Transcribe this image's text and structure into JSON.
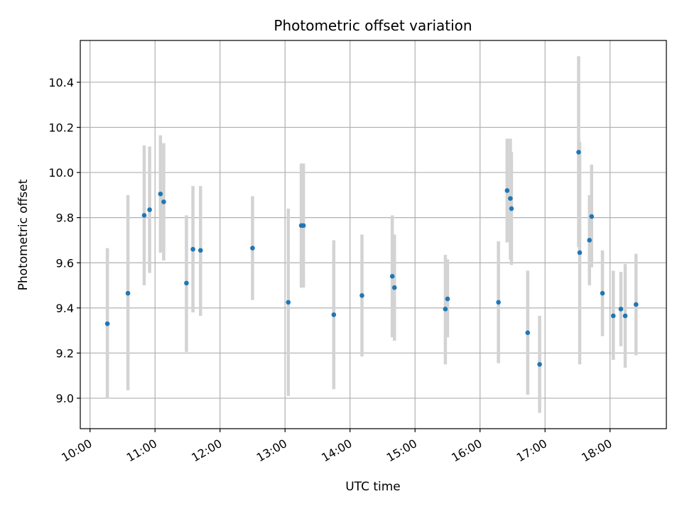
{
  "chart_data": {
    "type": "scatter",
    "title": "Photometric offset variation",
    "xlabel": "UTC time",
    "ylabel": "Photometric offset",
    "x_axis_type": "time",
    "xlim": [
      "09:51",
      "18:52"
    ],
    "ylim": [
      8.865,
      10.585
    ],
    "x_ticks": [
      "10:00",
      "11:00",
      "12:00",
      "13:00",
      "14:00",
      "15:00",
      "16:00",
      "17:00",
      "18:00"
    ],
    "y_ticks": [
      "9.0",
      "9.2",
      "9.4",
      "9.6",
      "9.8",
      "10.0",
      "10.2",
      "10.4"
    ],
    "grid": true,
    "colors": {
      "point": "#1f77b4",
      "errorbar": "#d3d3d3",
      "grid": "#b0b0b0",
      "axis": "#000000"
    },
    "points": [
      {
        "t": "10:16",
        "y": 9.33,
        "lo": 9.0,
        "hi": 9.665
      },
      {
        "t": "10:35",
        "y": 9.465,
        "lo": 9.035,
        "hi": 9.9
      },
      {
        "t": "10:50",
        "y": 9.81,
        "lo": 9.5,
        "hi": 10.12
      },
      {
        "t": "10:55",
        "y": 9.835,
        "lo": 9.555,
        "hi": 10.115
      },
      {
        "t": "11:05",
        "y": 9.905,
        "lo": 9.645,
        "hi": 10.165
      },
      {
        "t": "11:08",
        "y": 9.87,
        "lo": 9.61,
        "hi": 10.13
      },
      {
        "t": "11:29",
        "y": 9.51,
        "lo": 9.205,
        "hi": 9.81
      },
      {
        "t": "11:35",
        "y": 9.66,
        "lo": 9.38,
        "hi": 9.94
      },
      {
        "t": "11:42",
        "y": 9.655,
        "lo": 9.365,
        "hi": 9.94
      },
      {
        "t": "12:30",
        "y": 9.665,
        "lo": 9.435,
        "hi": 9.895
      },
      {
        "t": "13:03",
        "y": 9.425,
        "lo": 9.01,
        "hi": 9.84
      },
      {
        "t": "13:15",
        "y": 9.765,
        "lo": 9.49,
        "hi": 10.04
      },
      {
        "t": "13:17",
        "y": 9.765,
        "lo": 9.49,
        "hi": 10.04
      },
      {
        "t": "13:45",
        "y": 9.37,
        "lo": 9.04,
        "hi": 9.7
      },
      {
        "t": "14:11",
        "y": 9.455,
        "lo": 9.185,
        "hi": 9.725
      },
      {
        "t": "14:39",
        "y": 9.54,
        "lo": 9.27,
        "hi": 9.81
      },
      {
        "t": "14:41",
        "y": 9.49,
        "lo": 9.255,
        "hi": 9.725
      },
      {
        "t": "15:28",
        "y": 9.395,
        "lo": 9.15,
        "hi": 9.635
      },
      {
        "t": "15:30",
        "y": 9.44,
        "lo": 9.27,
        "hi": 9.615
      },
      {
        "t": "16:17",
        "y": 9.425,
        "lo": 9.155,
        "hi": 9.695
      },
      {
        "t": "16:25",
        "y": 9.92,
        "lo": 9.69,
        "hi": 10.15
      },
      {
        "t": "16:28",
        "y": 9.885,
        "lo": 9.615,
        "hi": 10.15
      },
      {
        "t": "16:29",
        "y": 9.84,
        "lo": 9.59,
        "hi": 10.09
      },
      {
        "t": "16:44",
        "y": 9.29,
        "lo": 9.015,
        "hi": 9.565
      },
      {
        "t": "16:55",
        "y": 9.15,
        "lo": 8.935,
        "hi": 9.365
      },
      {
        "t": "17:31",
        "y": 10.09,
        "lo": 9.67,
        "hi": 10.515
      },
      {
        "t": "17:32",
        "y": 9.645,
        "lo": 9.15,
        "hi": 10.135
      },
      {
        "t": "17:41",
        "y": 9.7,
        "lo": 9.5,
        "hi": 9.9
      },
      {
        "t": "17:43",
        "y": 9.805,
        "lo": 9.58,
        "hi": 10.035
      },
      {
        "t": "17:53",
        "y": 9.465,
        "lo": 9.275,
        "hi": 9.655
      },
      {
        "t": "18:03",
        "y": 9.365,
        "lo": 9.17,
        "hi": 9.565
      },
      {
        "t": "18:10",
        "y": 9.395,
        "lo": 9.23,
        "hi": 9.56
      },
      {
        "t": "18:14",
        "y": 9.365,
        "lo": 9.135,
        "hi": 9.595
      },
      {
        "t": "18:24",
        "y": 9.415,
        "lo": 9.19,
        "hi": 9.64
      }
    ]
  }
}
